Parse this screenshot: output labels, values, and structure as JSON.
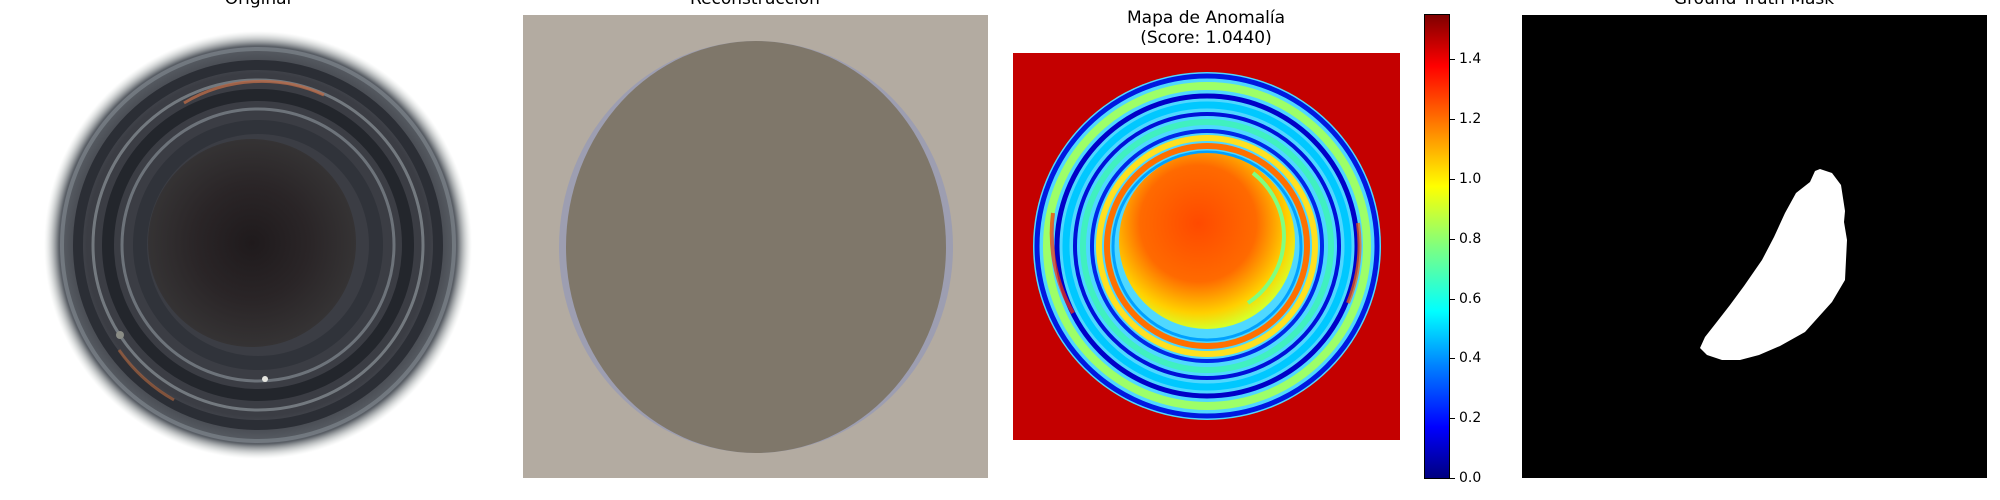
{
  "panels": {
    "original": {
      "title": "Original"
    },
    "reconstruction": {
      "title": "Reconstrucción"
    },
    "anomaly_map": {
      "title_line1": "Mapa de Anomalía",
      "title_line2": "(Score: 1.0440)"
    },
    "ground_truth": {
      "title": "Ground Truth Mask"
    }
  },
  "colorbar": {
    "ticks": [
      "0.0",
      "0.2",
      "0.4",
      "0.6",
      "0.8",
      "1.0",
      "1.2",
      "1.4"
    ],
    "range": [
      0.0,
      1.55
    ],
    "colormap": "jet"
  },
  "colors": {
    "recon_background": "#b3aba1",
    "recon_disk": "#7f776a",
    "anomaly_background": "#c40000",
    "mask_background": "#000000",
    "mask_region": "#ffffff"
  }
}
